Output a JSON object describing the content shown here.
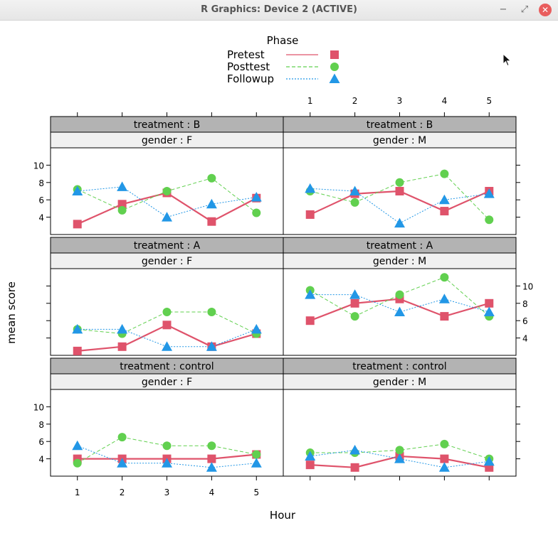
{
  "window": {
    "title": "R Graphics: Device 2 (ACTIVE)",
    "minimize_glyph": "−",
    "maximize_glyph": "⤢",
    "close_glyph": "✕"
  },
  "colors": {
    "pretest": "#DF536B",
    "posttest": "#61D04F",
    "followup": "#2297E6",
    "strip_dark": "#b3b3b3",
    "strip_light": "#f0f0f0"
  },
  "chart_data": {
    "type": "line",
    "title": "",
    "xlabel": "Hour",
    "ylabel": "mean score",
    "x": [
      1,
      2,
      3,
      4,
      5
    ],
    "xlim": [
      0.4,
      5.6
    ],
    "ylim": [
      2,
      12
    ],
    "y_ticks": [
      4,
      6,
      8,
      10
    ],
    "x_ticks": [
      1,
      2,
      3,
      4,
      5
    ],
    "legend": {
      "title": "Phase",
      "position": "top",
      "entries": [
        {
          "name": "Pretest",
          "line": "solid",
          "marker": "square"
        },
        {
          "name": "Posttest",
          "line": "dashed",
          "marker": "circle"
        },
        {
          "name": "Followup",
          "line": "dotted",
          "marker": "triangle"
        }
      ]
    },
    "panels": [
      {
        "treatment": "treatment : B",
        "gender": "gender : F",
        "series": {
          "Pretest": [
            3.2,
            5.5,
            6.8,
            3.5,
            6.2
          ],
          "Posttest": [
            7.2,
            4.8,
            7.0,
            8.5,
            4.5
          ],
          "Followup": [
            7.0,
            7.5,
            4.0,
            5.5,
            6.3
          ]
        }
      },
      {
        "treatment": "treatment : B",
        "gender": "gender : M",
        "series": {
          "Pretest": [
            4.3,
            6.7,
            7.0,
            4.7,
            7.0
          ],
          "Posttest": [
            7.0,
            5.7,
            8.0,
            9.0,
            3.7
          ],
          "Followup": [
            7.3,
            7.0,
            3.3,
            6.0,
            6.7
          ]
        }
      },
      {
        "treatment": "treatment : A",
        "gender": "gender : F",
        "series": {
          "Pretest": [
            2.5,
            3.0,
            5.5,
            3.0,
            4.5
          ],
          "Posttest": [
            5.0,
            4.5,
            7.0,
            7.0,
            4.5
          ],
          "Followup": [
            5.0,
            5.0,
            3.0,
            3.0,
            5.0
          ]
        }
      },
      {
        "treatment": "treatment : A",
        "gender": "gender : M",
        "series": {
          "Pretest": [
            6.0,
            8.0,
            8.5,
            6.5,
            8.0
          ],
          "Posttest": [
            9.5,
            6.5,
            9.0,
            11.0,
            6.5
          ],
          "Followup": [
            9.0,
            9.0,
            7.0,
            8.5,
            7.0
          ]
        }
      },
      {
        "treatment": "treatment : control",
        "gender": "gender : F",
        "series": {
          "Pretest": [
            4.0,
            4.0,
            4.0,
            4.0,
            4.5
          ],
          "Posttest": [
            3.5,
            6.5,
            5.5,
            5.5,
            4.5
          ],
          "Followup": [
            5.5,
            3.5,
            3.5,
            3.0,
            3.5
          ]
        }
      },
      {
        "treatment": "treatment : control",
        "gender": "gender : M",
        "series": {
          "Pretest": [
            3.3,
            3.0,
            4.3,
            4.0,
            3.0
          ],
          "Posttest": [
            4.7,
            4.7,
            5.0,
            5.7,
            4.0
          ],
          "Followup": [
            4.3,
            5.0,
            4.0,
            3.0,
            3.7
          ]
        }
      }
    ]
  }
}
